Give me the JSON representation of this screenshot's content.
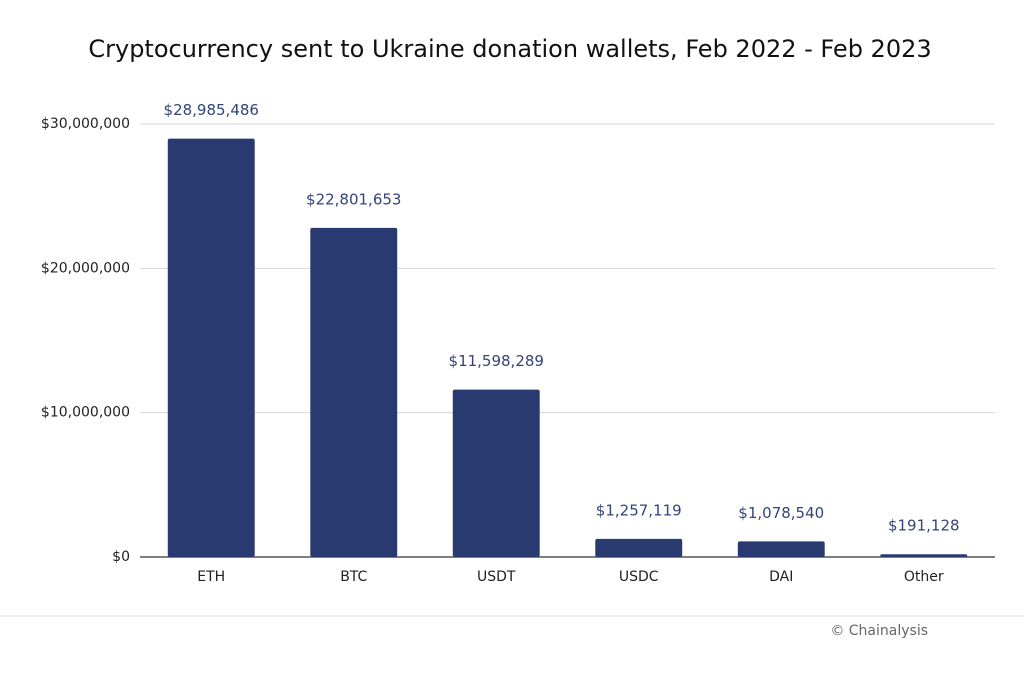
{
  "chart_data": {
    "type": "bar",
    "title": "Cryptocurrency sent to Ukraine donation wallets, Feb 2022 - Feb 2023",
    "categories": [
      "ETH",
      "BTC",
      "USDT",
      "USDC",
      "DAI",
      "Other"
    ],
    "values": [
      28985486,
      22801653,
      11598289,
      1257119,
      1078540,
      191128
    ],
    "value_labels": [
      "$28,985,486",
      "$22,801,653",
      "$11,598,289",
      "$1,257,119",
      "$1,078,540",
      "$191,128"
    ],
    "color": "#293a70",
    "ylim": [
      0,
      30000000
    ],
    "yticks": [
      {
        "value": 0,
        "label": "$0"
      },
      {
        "value": 10000000,
        "label": "$10,000,000"
      },
      {
        "value": 20000000,
        "label": "$20,000,000"
      },
      {
        "value": 30000000,
        "label": "$30,000,000"
      }
    ],
    "grid": true,
    "credit": "© Chainalysis"
  }
}
